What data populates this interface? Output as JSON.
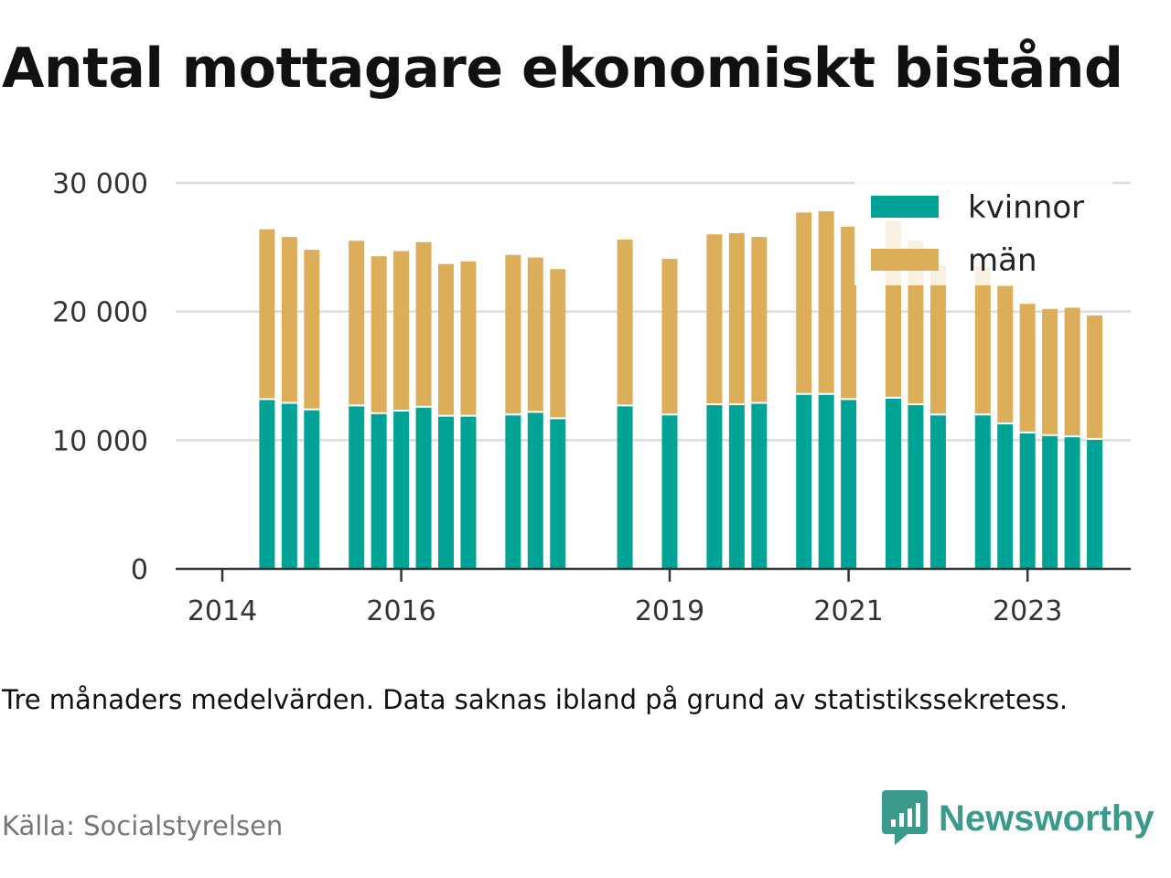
{
  "title": "Antal mottagare ekonomiskt bistånd",
  "note": "Tre månaders medelvärden. Data saknas ibland på grund av statistikssekretess.",
  "source": "Källa: Socialstyrelsen",
  "brand": {
    "name": "Newsworthy",
    "icon": "newsworthy-logo-icon",
    "color": "#3a9b8c"
  },
  "colors": {
    "kvinnor": "#00a396",
    "man": "#dcae5a",
    "grid": "#dddddd",
    "axis": "#333333"
  },
  "chart_data": {
    "type": "bar",
    "stacked": true,
    "title": "Antal mottagare ekonomiskt bistånd",
    "xlabel": "",
    "ylabel": "",
    "ylim": [
      0,
      30000
    ],
    "yticks": [
      0,
      10000,
      20000,
      30000
    ],
    "ytick_labels": [
      "0",
      "10 000",
      "20 000",
      "30 000"
    ],
    "xticks": [
      "2014",
      "2016",
      "2019",
      "2021",
      "2023"
    ],
    "grid": true,
    "legend_position": "top-right",
    "quarters": [
      "2014Q1",
      "2014Q2",
      "2014Q3",
      "2014Q4",
      "2015Q1",
      "2015Q2",
      "2015Q3",
      "2015Q4",
      "2016Q1",
      "2016Q2",
      "2016Q3",
      "2016Q4",
      "2017Q1",
      "2017Q2",
      "2017Q3",
      "2017Q4",
      "2018Q1",
      "2018Q2",
      "2018Q3",
      "2018Q4",
      "2019Q1",
      "2019Q2",
      "2019Q3",
      "2019Q4",
      "2020Q1",
      "2020Q2",
      "2020Q3",
      "2020Q4",
      "2021Q1",
      "2021Q2",
      "2021Q3",
      "2021Q4",
      "2022Q1",
      "2022Q2",
      "2022Q3",
      "2022Q4",
      "2023Q1",
      "2023Q2",
      "2023Q3",
      "2023Q4"
    ],
    "series": [
      {
        "name": "kvinnor",
        "values": [
          null,
          13200,
          12900,
          12400,
          null,
          12700,
          12100,
          12300,
          12600,
          11900,
          11900,
          null,
          12000,
          12200,
          11700,
          null,
          null,
          12700,
          null,
          12000,
          null,
          12800,
          12800,
          12900,
          null,
          13600,
          13600,
          13200,
          null,
          13300,
          12800,
          12000,
          null,
          12000,
          11300,
          10600,
          10400,
          10300,
          10100,
          null
        ]
      },
      {
        "name": "män",
        "values": [
          null,
          13200,
          12900,
          12400,
          null,
          12800,
          12200,
          12400,
          12800,
          11800,
          12000,
          null,
          12400,
          12000,
          11600,
          null,
          null,
          12900,
          null,
          12100,
          null,
          13200,
          13300,
          12900,
          null,
          14100,
          14200,
          13400,
          null,
          13700,
          12700,
          11600,
          null,
          11500,
          10700,
          10000,
          9800,
          10000,
          9600,
          null
        ]
      }
    ]
  }
}
